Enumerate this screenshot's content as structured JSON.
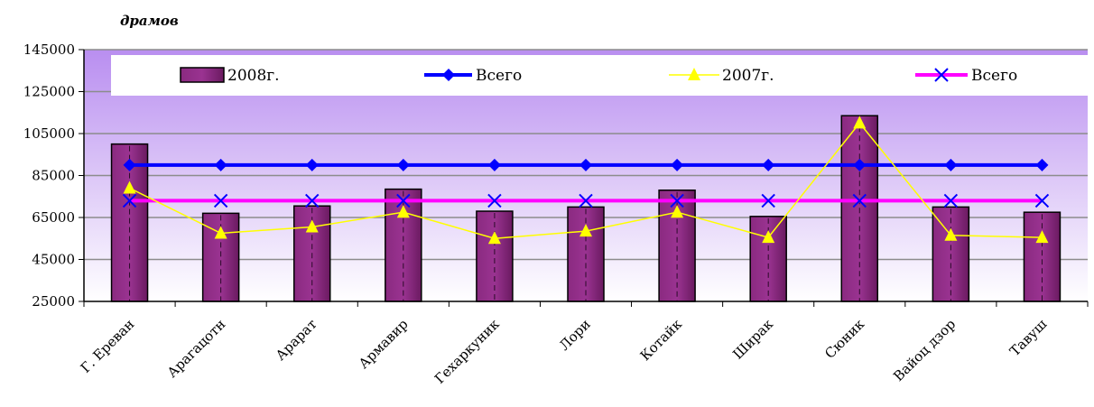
{
  "unit_label": "драмов",
  "chart_data": {
    "type": "bar",
    "categories": [
      "Г. Ереван",
      "Арагацотн",
      "Арарат",
      "Армавир",
      "Гехаркуник",
      "Лори",
      "Котайк",
      "Ширак",
      "Сюник",
      "Вайоц дзор",
      "Тавуш"
    ],
    "ylim": [
      25000,
      145000
    ],
    "yticks": [
      25000,
      45000,
      65000,
      85000,
      105000,
      125000,
      145000
    ],
    "grid": true,
    "legend_position": "top",
    "series": [
      {
        "name": "2008г.",
        "type": "bar",
        "color": "#7a1f6e",
        "values": [
          100000,
          67000,
          70500,
          78500,
          68000,
          70000,
          78000,
          65500,
          113500,
          70000,
          67500
        ]
      },
      {
        "name": "Всего",
        "type": "line",
        "marker": "diamond",
        "color": "#0000ff",
        "values": [
          90000,
          90000,
          90000,
          90000,
          90000,
          90000,
          90000,
          90000,
          90000,
          90000,
          90000
        ]
      },
      {
        "name": "2007г.",
        "type": "line",
        "marker": "triangle",
        "color": "#ffff00",
        "values": [
          79000,
          57500,
          60500,
          67500,
          55000,
          58500,
          67500,
          55500,
          110000,
          56500,
          55500
        ]
      },
      {
        "name": "Всего",
        "type": "line",
        "marker": "x",
        "color": "#ff00ff",
        "values": [
          73000,
          73000,
          73000,
          73000,
          73000,
          73000,
          73000,
          73000,
          73000,
          73000,
          73000
        ]
      }
    ]
  }
}
